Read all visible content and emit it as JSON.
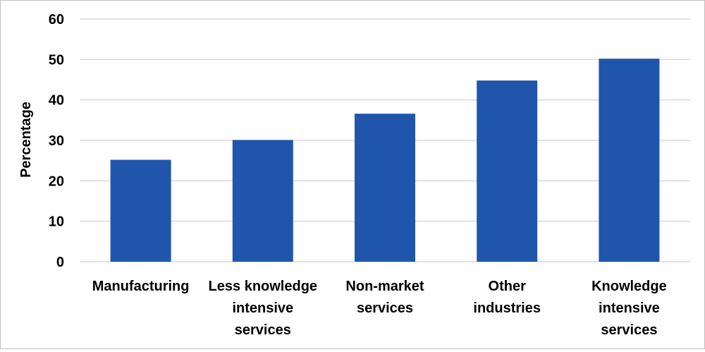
{
  "chart_data": {
    "type": "bar",
    "title": "",
    "xlabel": "",
    "ylabel": "Percentage",
    "ylim": [
      0,
      60
    ],
    "yticks": [
      0,
      10,
      20,
      30,
      40,
      50,
      60
    ],
    "categories": [
      [
        "Manufacturing"
      ],
      [
        "Less knowledge",
        "intensive",
        "services"
      ],
      [
        "Non-market",
        "services"
      ],
      [
        "Other",
        "industries"
      ],
      [
        "Knowledge",
        "intensive",
        "services"
      ]
    ],
    "values": [
      25.2,
      30.1,
      36.6,
      44.8,
      50.2
    ],
    "grid": true,
    "legend": "none",
    "colors": {
      "bar": "#1f56ab",
      "grid": "#d9d9d9",
      "text": "#000000"
    }
  }
}
